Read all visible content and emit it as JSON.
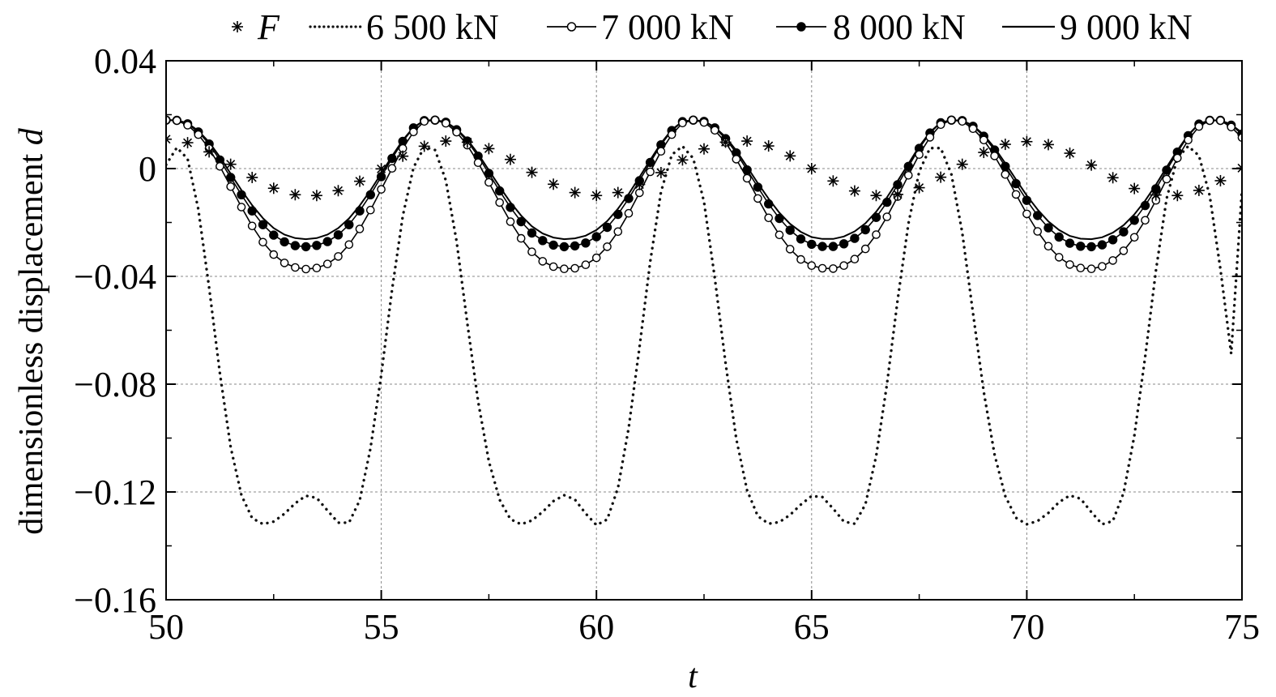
{
  "chart_data": {
    "type": "line",
    "title": "",
    "xlabel": "t",
    "ylabel_text": "dimensionless displacement ",
    "ylabel_var": "d",
    "xlim": [
      50,
      75
    ],
    "ylim": [
      -0.16,
      0.04
    ],
    "x_ticks": [
      50,
      55,
      60,
      65,
      70,
      75
    ],
    "x_tick_labels": [
      "50",
      "55",
      "60",
      "65",
      "70",
      "75"
    ],
    "y_ticks": [
      0.04,
      0,
      -0.04,
      -0.08,
      -0.12,
      -0.16
    ],
    "y_tick_labels": [
      "0.04",
      "0",
      "−0.04",
      "−0.08",
      "−0.12",
      "−0.16"
    ],
    "grid": true,
    "legend_position": "top",
    "series": [
      {
        "name": "F",
        "style": "asterisk-marker",
        "x": [
          50.0,
          50.5,
          51.0,
          51.5,
          52.0,
          52.5,
          53.0,
          53.5,
          54.0,
          54.5,
          55.0,
          55.5,
          56.0,
          56.5,
          57.0,
          57.5,
          58.0,
          58.5,
          59.0,
          59.5,
          60.0,
          60.5,
          61.0,
          61.5,
          62.0,
          62.5,
          63.0,
          63.5,
          64.0,
          64.5,
          65.0,
          65.5,
          66.0,
          66.5,
          67.0,
          67.5,
          68.0,
          68.5,
          69.0,
          69.5,
          70.0,
          70.5,
          71.0,
          71.5,
          72.0,
          72.5,
          73.0,
          73.5,
          74.0,
          74.5,
          75.0
        ],
        "y": [
          0.0109,
          0.0096,
          0.0062,
          0.0016,
          -0.0033,
          -0.0073,
          -0.0097,
          -0.01,
          -0.0082,
          -0.0047,
          -0.0001,
          0.0046,
          0.0083,
          0.0102,
          0.0098,
          0.0074,
          0.0034,
          -0.0014,
          -0.0058,
          -0.0089,
          -0.01,
          -0.0089,
          -0.0059,
          -0.0015,
          0.0032,
          0.0073,
          0.0098,
          0.0102,
          0.0084,
          0.0047,
          0.0,
          -0.0046,
          -0.0083,
          -0.01,
          -0.0096,
          -0.0071,
          -0.0032,
          0.0016,
          0.006,
          0.009,
          0.01,
          0.0089,
          0.0057,
          0.0013,
          -0.0034,
          -0.0074,
          -0.0098,
          -0.01,
          -0.0081,
          -0.0045,
          0.0002
        ]
      },
      {
        "name": "6 500 kN",
        "style": "dotted",
        "x": [
          50.0,
          50.25,
          50.5,
          50.75,
          51.0,
          51.25,
          51.5,
          51.75,
          52.0,
          52.25,
          52.5,
          52.75,
          53.0,
          53.25,
          53.5,
          53.75,
          54.0,
          54.25,
          54.5,
          54.75,
          55.0,
          55.25,
          55.5,
          55.75,
          56.0,
          56.25,
          56.5,
          56.75,
          57.0,
          57.25,
          57.5,
          57.75,
          58.0,
          58.25,
          58.5,
          58.75,
          59.0,
          59.25,
          59.5,
          59.75,
          60.0,
          60.25,
          60.5,
          60.75,
          61.0,
          61.25,
          61.5,
          61.75,
          62.0,
          62.25,
          62.5,
          62.75,
          63.0,
          63.25,
          63.5,
          63.75,
          64.0,
          64.25,
          64.5,
          64.75,
          65.0,
          65.25,
          65.5,
          65.75,
          66.0,
          66.25,
          66.5,
          66.75,
          67.0,
          67.25,
          67.5,
          67.75,
          68.0,
          68.25,
          68.5,
          68.75,
          69.0,
          69.25,
          69.5,
          69.75,
          70.0,
          70.25,
          70.5,
          70.75,
          71.0,
          71.25,
          71.5,
          71.75,
          72.0,
          72.25,
          72.5,
          72.75,
          73.0,
          73.25,
          73.5,
          73.75,
          74.0,
          74.25,
          74.5,
          74.75,
          75.0
        ],
        "y": [
          0.0014,
          0.0078,
          0.0036,
          -0.0151,
          -0.0441,
          -0.0759,
          -0.1033,
          -0.1212,
          -0.1297,
          -0.1319,
          -0.131,
          -0.1281,
          -0.1242,
          -0.1214,
          -0.1222,
          -0.1269,
          -0.1314,
          -0.1314,
          -0.1231,
          -0.1038,
          -0.0765,
          -0.045,
          -0.0175,
          0.0004,
          0.008,
          0.0069,
          -0.0044,
          -0.027,
          -0.0573,
          -0.0863,
          -0.1086,
          -0.1229,
          -0.1301,
          -0.132,
          -0.1306,
          -0.1274,
          -0.1234,
          -0.1212,
          -0.1228,
          -0.128,
          -0.1323,
          -0.1302,
          -0.1185,
          -0.0962,
          -0.0664,
          -0.0345,
          -0.0086,
          0.0051,
          0.0083,
          0.0038,
          -0.0124,
          -0.0406,
          -0.0722,
          -0.1003,
          -0.1193,
          -0.129,
          -0.1318,
          -0.1312,
          -0.1285,
          -0.1247,
          -0.1215,
          -0.1219,
          -0.1262,
          -0.131,
          -0.1318,
          -0.1246,
          -0.1066,
          -0.08,
          -0.0487,
          -0.0204,
          -0.0011,
          0.0076,
          0.0076,
          -0.0022,
          -0.0237,
          -0.0536,
          -0.0829,
          -0.1061,
          -0.1215,
          -0.1296,
          -0.132,
          -0.1308,
          -0.1278,
          -0.1238,
          -0.1213,
          -0.1225,
          -0.1275,
          -0.132,
          -0.1308,
          -0.1203,
          -0.099,
          -0.0699,
          -0.0378,
          -0.0111,
          0.0039,
          0.0083,
          0.0048,
          -0.01,
          -0.0373,
          -0.0687,
          -0.0078
        ]
      },
      {
        "name": "7 000 kN",
        "style": "line-open-circle",
        "x": [
          50.0,
          50.25,
          50.5,
          50.75,
          51.0,
          51.25,
          51.5,
          51.75,
          52.0,
          52.25,
          52.5,
          52.75,
          53.0,
          53.25,
          53.5,
          53.75,
          54.0,
          54.25,
          54.5,
          54.75,
          55.0,
          55.25,
          55.5,
          55.75,
          56.0,
          56.25,
          56.5,
          56.75,
          57.0,
          57.25,
          57.5,
          57.75,
          58.0,
          58.25,
          58.5,
          58.75,
          59.0,
          59.25,
          59.5,
          59.75,
          60.0,
          60.25,
          60.5,
          60.75,
          61.0,
          61.25,
          61.5,
          61.75,
          62.0,
          62.25,
          62.5,
          62.75,
          63.0,
          63.25,
          63.5,
          63.75,
          64.0,
          64.25,
          64.5,
          64.75,
          65.0,
          65.25,
          65.5,
          65.75,
          66.0,
          66.25,
          66.5,
          66.75,
          67.0,
          67.25,
          67.5,
          67.75,
          68.0,
          68.25,
          68.5,
          68.75,
          69.0,
          69.25,
          69.5,
          69.75,
          70.0,
          70.25,
          70.5,
          70.75,
          71.0,
          71.25,
          71.5,
          71.75,
          72.0,
          72.25,
          72.5,
          72.75,
          73.0,
          73.25,
          73.5,
          73.75,
          74.0,
          74.25,
          74.5,
          74.75,
          75.0
        ],
        "y": [
          0.018,
          0.0178,
          0.0161,
          0.0126,
          0.0075,
          0.0008,
          -0.0067,
          -0.0143,
          -0.0213,
          -0.0273,
          -0.0319,
          -0.035,
          -0.0367,
          -0.0373,
          -0.0369,
          -0.0354,
          -0.0326,
          -0.0282,
          -0.0224,
          -0.0154,
          -0.0077,
          0.0001,
          0.0075,
          0.0136,
          0.0175,
          0.018,
          0.0168,
          0.0135,
          0.0087,
          0.0022,
          -0.0051,
          -0.0126,
          -0.0197,
          -0.0259,
          -0.0309,
          -0.0344,
          -0.0364,
          -0.0372,
          -0.037,
          -0.0357,
          -0.0331,
          -0.029,
          -0.0234,
          -0.0166,
          -0.009,
          -0.0012,
          0.0064,
          0.0126,
          0.0169,
          0.018,
          0.0171,
          0.0142,
          0.0097,
          0.0035,
          -0.0036,
          -0.0111,
          -0.0183,
          -0.0246,
          -0.0299,
          -0.0337,
          -0.036,
          -0.037,
          -0.0371,
          -0.036,
          -0.0336,
          -0.0298,
          -0.0245,
          -0.0179,
          -0.0104,
          -0.0025,
          0.0052,
          0.0116,
          0.0163,
          0.018,
          0.0175,
          0.0148,
          0.0106,
          0.0047,
          -0.0022,
          -0.0096,
          -0.0168,
          -0.0233,
          -0.0288,
          -0.0329,
          -0.0356,
          -0.0369,
          -0.0372,
          -0.0363,
          -0.0341,
          -0.0305,
          -0.0255,
          -0.0192,
          -0.0118,
          -0.0039,
          0.0039,
          0.0106,
          0.0156,
          0.0178,
          0.0178,
          0.0154,
          0.0115
        ]
      },
      {
        "name": "8 000 kN",
        "style": "line-filled-circle",
        "x": [
          50.0,
          50.25,
          50.5,
          50.75,
          51.0,
          51.25,
          51.5,
          51.75,
          52.0,
          52.25,
          52.5,
          52.75,
          53.0,
          53.25,
          53.5,
          53.75,
          54.0,
          54.25,
          54.5,
          54.75,
          55.0,
          55.25,
          55.5,
          55.75,
          56.0,
          56.25,
          56.5,
          56.75,
          57.0,
          57.25,
          57.5,
          57.75,
          58.0,
          58.25,
          58.5,
          58.75,
          59.0,
          59.25,
          59.5,
          59.75,
          60.0,
          60.25,
          60.5,
          60.75,
          61.0,
          61.25,
          61.5,
          61.75,
          62.0,
          62.25,
          62.5,
          62.75,
          63.0,
          63.25,
          63.5,
          63.75,
          64.0,
          64.25,
          64.5,
          64.75,
          65.0,
          65.25,
          65.5,
          65.75,
          66.0,
          66.25,
          66.5,
          66.75,
          67.0,
          67.25,
          67.5,
          67.75,
          68.0,
          68.25,
          68.5,
          68.75,
          69.0,
          69.25,
          69.5,
          69.75,
          70.0,
          70.25,
          70.5,
          70.75,
          71.0,
          71.25,
          71.5,
          71.75,
          72.0,
          72.25,
          72.5,
          72.75,
          73.0,
          73.25,
          73.5,
          73.75,
          74.0,
          74.25,
          74.5,
          74.75,
          75.0
        ],
        "y": [
          0.018,
          0.0179,
          0.0166,
          0.0136,
          0.0091,
          0.0032,
          -0.0033,
          -0.0097,
          -0.0157,
          -0.0208,
          -0.0247,
          -0.0272,
          -0.0286,
          -0.029,
          -0.0285,
          -0.0271,
          -0.0246,
          -0.0208,
          -0.0157,
          -0.0097,
          -0.003,
          0.0038,
          0.0101,
          0.0151,
          0.0178,
          0.018,
          0.0172,
          0.0144,
          0.0102,
          0.0046,
          -0.0018,
          -0.0083,
          -0.0144,
          -0.0197,
          -0.0239,
          -0.0267,
          -0.0284,
          -0.029,
          -0.0287,
          -0.0276,
          -0.0253,
          -0.0218,
          -0.017,
          -0.0111,
          -0.0045,
          0.0023,
          0.0088,
          0.0141,
          0.0174,
          0.018,
          0.0175,
          0.0151,
          0.0111,
          0.0058,
          -0.0005,
          -0.0069,
          -0.0131,
          -0.0185,
          -0.0229,
          -0.0261,
          -0.0281,
          -0.0289,
          -0.0289,
          -0.0279,
          -0.0259,
          -0.0227,
          -0.0181,
          -0.0125,
          -0.006,
          0.0008,
          0.0075,
          0.0132,
          0.017,
          0.018,
          0.0178,
          0.0157,
          0.012,
          0.0069,
          0.0008,
          -0.0056,
          -0.0118,
          -0.0174,
          -0.022,
          -0.0254,
          -0.0277,
          -0.0288,
          -0.029,
          -0.0283,
          -0.0264,
          -0.0235,
          -0.0192,
          -0.0137,
          -0.0075,
          -0.0006,
          0.0061,
          0.0122,
          0.0165,
          0.0179,
          0.0179,
          0.0161,
          0.0128
        ]
      },
      {
        "name": "9 000 kN",
        "style": "solid",
        "x": [
          50.0,
          50.25,
          50.5,
          50.75,
          51.0,
          51.25,
          51.5,
          51.75,
          52.0,
          52.25,
          52.5,
          52.75,
          53.0,
          53.25,
          53.5,
          53.75,
          54.0,
          54.25,
          54.5,
          54.75,
          55.0,
          55.25,
          55.5,
          55.75,
          56.0,
          56.25,
          56.5,
          56.75,
          57.0,
          57.25,
          57.5,
          57.75,
          58.0,
          58.25,
          58.5,
          58.75,
          59.0,
          59.25,
          59.5,
          59.75,
          60.0,
          60.25,
          60.5,
          60.75,
          61.0,
          61.25,
          61.5,
          61.75,
          62.0,
          62.25,
          62.5,
          62.75,
          63.0,
          63.25,
          63.5,
          63.75,
          64.0,
          64.25,
          64.5,
          64.75,
          65.0,
          65.25,
          65.5,
          65.75,
          66.0,
          66.25,
          66.5,
          66.75,
          67.0,
          67.25,
          67.5,
          67.75,
          68.0,
          68.25,
          68.5,
          68.75,
          69.0,
          69.25,
          69.5,
          69.75,
          70.0,
          70.25,
          70.5,
          70.75,
          71.0,
          71.25,
          71.5,
          71.75,
          72.0,
          72.25,
          72.5,
          72.75,
          73.0,
          73.25,
          73.5,
          73.75,
          74.0,
          74.25,
          74.5,
          74.75,
          75.0
        ],
        "y": [
          0.018,
          0.018,
          0.0168,
          0.014,
          0.0098,
          0.0043,
          -0.0019,
          -0.008,
          -0.0136,
          -0.0184,
          -0.0221,
          -0.0245,
          -0.0258,
          -0.0262,
          -0.0258,
          -0.0245,
          -0.0221,
          -0.0185,
          -0.0137,
          -0.0081,
          -0.0018,
          0.0046,
          0.0106,
          0.0153,
          0.0179,
          0.018,
          0.0173,
          0.0147,
          0.0108,
          0.0055,
          -0.0006,
          -0.0067,
          -0.0125,
          -0.0174,
          -0.0214,
          -0.0241,
          -0.0256,
          -0.0262,
          -0.0259,
          -0.0249,
          -0.0228,
          -0.0195,
          -0.0149,
          -0.0094,
          -0.0032,
          0.0032,
          0.0094,
          0.0144,
          0.0175,
          0.018,
          0.0176,
          0.0154,
          0.0117,
          0.0067,
          0.0007,
          -0.0054,
          -0.0112,
          -0.0164,
          -0.0205,
          -0.0235,
          -0.0254,
          -0.0261,
          -0.0261,
          -0.0252,
          -0.0233,
          -0.0203,
          -0.016,
          -0.0107,
          -0.0046,
          0.0018,
          0.0082,
          0.0135,
          0.0171,
          0.018,
          0.0178,
          0.016,
          0.0125,
          0.0077,
          0.002,
          -0.0041,
          -0.01,
          -0.0152,
          -0.0196,
          -0.0228,
          -0.025,
          -0.026,
          -0.0262,
          -0.0255,
          -0.0238,
          -0.021,
          -0.017,
          -0.0119,
          -0.006,
          0.0005,
          0.0068,
          0.0125,
          0.0166,
          0.0179,
          0.0179,
          0.0164,
          0.0133
        ]
      }
    ]
  }
}
